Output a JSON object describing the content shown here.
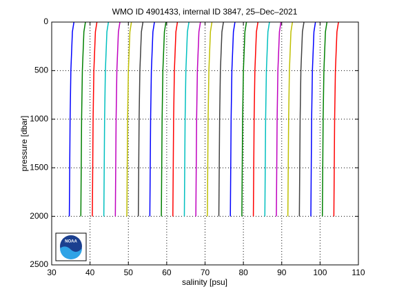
{
  "chart_data": {
    "type": "line",
    "title": "WMO ID 4901433, internal ID 3847, 25–Dec–2021",
    "x_label": "salinity [psu]",
    "y_label": "pressure [dbar]",
    "logo_text": "NOAA",
    "pressure": [
      0,
      100,
      500,
      1000,
      2000
    ],
    "xlim": [
      30,
      110
    ],
    "xticks": [
      30,
      40,
      50,
      60,
      70,
      80,
      90,
      100,
      110
    ],
    "ylim": [
      0,
      2500
    ],
    "yticks": [
      0,
      500,
      1000,
      1500,
      2000,
      2500
    ],
    "y_reversed": true,
    "grid": true,
    "series": [
      {
        "color": "#0000ff",
        "values": [
          35.8,
          35.4,
          35,
          34.8,
          34.6
        ]
      },
      {
        "color": "#008000",
        "values": [
          38.8,
          38.4,
          38,
          37.8,
          37.6
        ]
      },
      {
        "color": "#ff0000",
        "values": [
          41.8,
          41.4,
          41,
          40.8,
          40.6
        ]
      },
      {
        "color": "#00bfbf",
        "values": [
          44.8,
          44.4,
          44,
          43.8,
          43.6
        ]
      },
      {
        "color": "#bf00bf",
        "values": [
          47.8,
          47.4,
          47,
          46.8,
          46.6
        ]
      },
      {
        "color": "#bfbf00",
        "values": [
          50.8,
          50.4,
          50,
          49.8,
          49.6
        ]
      },
      {
        "color": "#404040",
        "values": [
          53.8,
          53.4,
          53,
          52.8,
          52.6
        ]
      },
      {
        "color": "#0000ff",
        "values": [
          56.8,
          56.4,
          56,
          55.8,
          55.6
        ]
      },
      {
        "color": "#008000",
        "values": [
          59.8,
          59.4,
          59,
          58.8,
          58.6
        ]
      },
      {
        "color": "#ff0000",
        "values": [
          62.8,
          62.4,
          62,
          61.8,
          61.6
        ]
      },
      {
        "color": "#00bfbf",
        "values": [
          65.8,
          65.4,
          65,
          64.8,
          64.6
        ]
      },
      {
        "color": "#bf00bf",
        "values": [
          68.8,
          68.4,
          68,
          67.8,
          67.6
        ]
      },
      {
        "color": "#bfbf00",
        "values": [
          71.8,
          71.4,
          71,
          70.8,
          70.6
        ]
      },
      {
        "color": "#404040",
        "values": [
          74.8,
          74.4,
          74,
          73.8,
          73.6
        ]
      },
      {
        "color": "#0000ff",
        "values": [
          77.8,
          77.4,
          77,
          76.8,
          76.6
        ]
      },
      {
        "color": "#008000",
        "values": [
          80.8,
          80.4,
          80,
          79.8,
          79.6
        ]
      },
      {
        "color": "#ff0000",
        "values": [
          83.8,
          83.4,
          83,
          82.8,
          82.6
        ]
      },
      {
        "color": "#00bfbf",
        "values": [
          86.8,
          86.4,
          86,
          85.8,
          85.6
        ]
      },
      {
        "color": "#bf00bf",
        "values": [
          89.8,
          89.4,
          89,
          88.8,
          88.6
        ]
      },
      {
        "color": "#bfbf00",
        "values": [
          92.8,
          92.4,
          92,
          91.8,
          91.6
        ]
      },
      {
        "color": "#404040",
        "values": [
          95.8,
          95.4,
          95,
          94.8,
          94.6
        ]
      },
      {
        "color": "#0000ff",
        "values": [
          98.8,
          98.4,
          98,
          97.8,
          97.6
        ]
      },
      {
        "color": "#008000",
        "values": [
          101.8,
          101.4,
          101,
          100.8,
          100.6
        ]
      },
      {
        "color": "#ff0000",
        "values": [
          104.8,
          104.4,
          104,
          103.8,
          103.6
        ]
      }
    ]
  }
}
